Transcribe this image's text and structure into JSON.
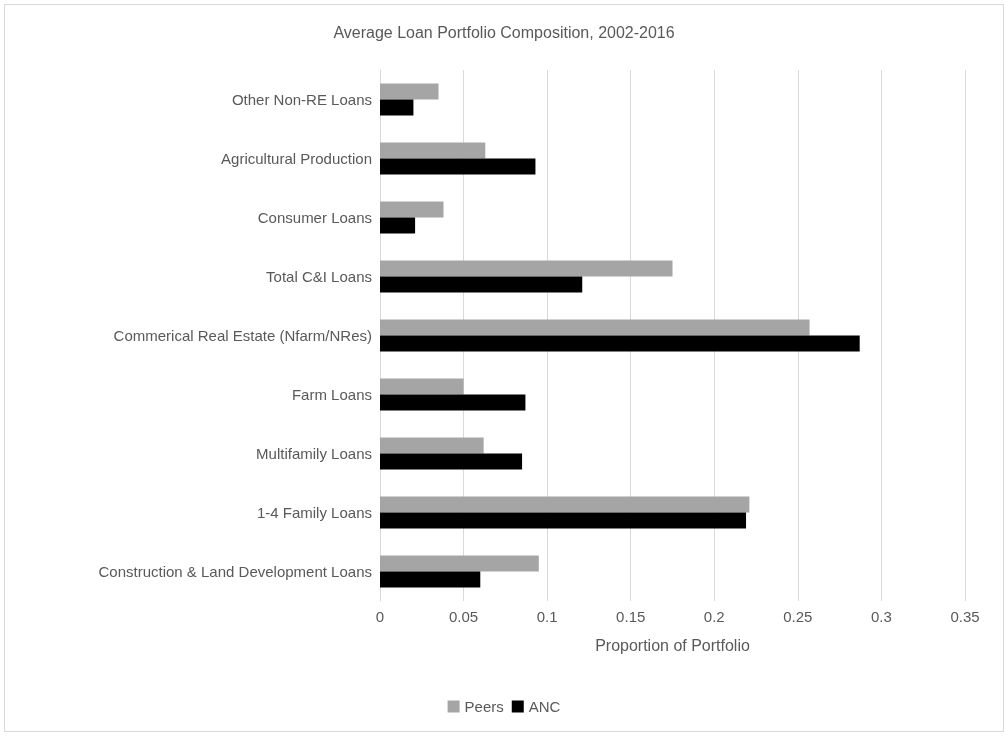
{
  "chart_data": {
    "type": "bar",
    "orientation": "horizontal",
    "title": "Average Loan Portfolio Composition, 2002-2016",
    "xlabel": "Proportion of Portfolio",
    "categories": [
      "Other Non-RE Loans",
      "Agricultural Production",
      "Consumer Loans",
      "Total C&I Loans",
      "Commerical Real Estate (Nfarm/NRes)",
      "Farm Loans",
      "Multifamily Loans",
      "1-4 Family Loans",
      "Construction & Land Development Loans"
    ],
    "series": [
      {
        "name": "Peers",
        "color": "#a5a5a5",
        "values": [
          0.035,
          0.063,
          0.038,
          0.175,
          0.257,
          0.05,
          0.062,
          0.221,
          0.095
        ]
      },
      {
        "name": "ANC",
        "color": "#000000",
        "values": [
          0.02,
          0.093,
          0.021,
          0.121,
          0.287,
          0.087,
          0.085,
          0.219,
          0.06
        ]
      }
    ],
    "xlim": [
      0,
      0.35
    ],
    "xticks": [
      0,
      0.05,
      0.1,
      0.15,
      0.2,
      0.25,
      0.3,
      0.35
    ],
    "grid": "x",
    "legend": "bottom"
  }
}
